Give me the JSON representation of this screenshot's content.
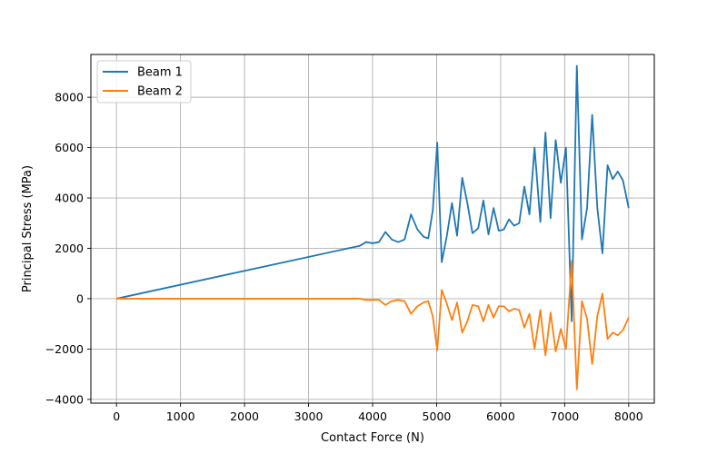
{
  "chart_data": {
    "type": "line",
    "title": "",
    "xlabel": "Contact Force (N)",
    "ylabel": "Principal Stress (MPa)",
    "xlim": [
      -400,
      8400
    ],
    "ylim": [
      -4150,
      9700
    ],
    "xticks": [
      0,
      1000,
      2000,
      3000,
      4000,
      5000,
      6000,
      7000,
      8000
    ],
    "yticks": [
      -4000,
      -2000,
      0,
      2000,
      4000,
      6000,
      8000
    ],
    "xtick_labels": [
      "0",
      "1000",
      "2000",
      "3000",
      "4000",
      "5000",
      "6000",
      "7000",
      "8000"
    ],
    "ytick_labels": [
      "−4000",
      "−2000",
      "0",
      "2000",
      "4000",
      "6000",
      "8000"
    ],
    "grid": true,
    "legend_position": "top-left",
    "series": [
      {
        "name": "Beam 1",
        "color": "#1f77b4",
        "x": [
          0,
          3800,
          3900,
          4000,
          4100,
          4200,
          4300,
          4400,
          4500,
          4600,
          4700,
          4800,
          4870,
          4940,
          5010,
          5080,
          5160,
          5240,
          5320,
          5400,
          5480,
          5560,
          5650,
          5730,
          5810,
          5890,
          5970,
          6050,
          6130,
          6210,
          6290,
          6370,
          6450,
          6530,
          6620,
          6700,
          6780,
          6860,
          6940,
          7020,
          7110,
          7190,
          7270,
          7350,
          7430,
          7510,
          7590,
          7670,
          7750,
          7830,
          7910,
          8000
        ],
        "y": [
          0,
          2100,
          2250,
          2200,
          2250,
          2650,
          2350,
          2250,
          2350,
          3350,
          2750,
          2450,
          2400,
          3500,
          6200,
          1450,
          2500,
          3800,
          2500,
          4800,
          3800,
          2600,
          2800,
          3900,
          2550,
          3600,
          2700,
          2750,
          3150,
          2900,
          3000,
          4450,
          3350,
          6000,
          3050,
          6600,
          3200,
          6300,
          4600,
          6000,
          -900,
          9250,
          2350,
          3600,
          7300,
          3600,
          1800,
          5300,
          4750,
          5050,
          4700,
          3600
        ]
      },
      {
        "name": "Beam 2",
        "color": "#ff7f0e",
        "x": [
          0,
          3800,
          3900,
          4000,
          4100,
          4200,
          4300,
          4400,
          4500,
          4600,
          4700,
          4800,
          4870,
          4940,
          5010,
          5080,
          5160,
          5240,
          5320,
          5400,
          5480,
          5560,
          5650,
          5730,
          5810,
          5890,
          5970,
          6050,
          6130,
          6210,
          6290,
          6370,
          6450,
          6530,
          6620,
          6700,
          6780,
          6860,
          6940,
          7020,
          7110,
          7190,
          7270,
          7350,
          7430,
          7510,
          7590,
          7670,
          7750,
          7830,
          7910,
          8000
        ],
        "y": [
          0,
          0,
          -50,
          -50,
          -50,
          -250,
          -100,
          -50,
          -100,
          -600,
          -300,
          -150,
          -100,
          -700,
          -2050,
          350,
          -200,
          -850,
          -150,
          -1350,
          -900,
          -250,
          -300,
          -900,
          -250,
          -750,
          -300,
          -300,
          -500,
          -400,
          -450,
          -1150,
          -600,
          -2000,
          -450,
          -2250,
          -550,
          -2100,
          -1200,
          -2000,
          1500,
          -3600,
          -100,
          -800,
          -2600,
          -700,
          200,
          -1600,
          -1350,
          -1450,
          -1250,
          -750
        ]
      }
    ]
  }
}
